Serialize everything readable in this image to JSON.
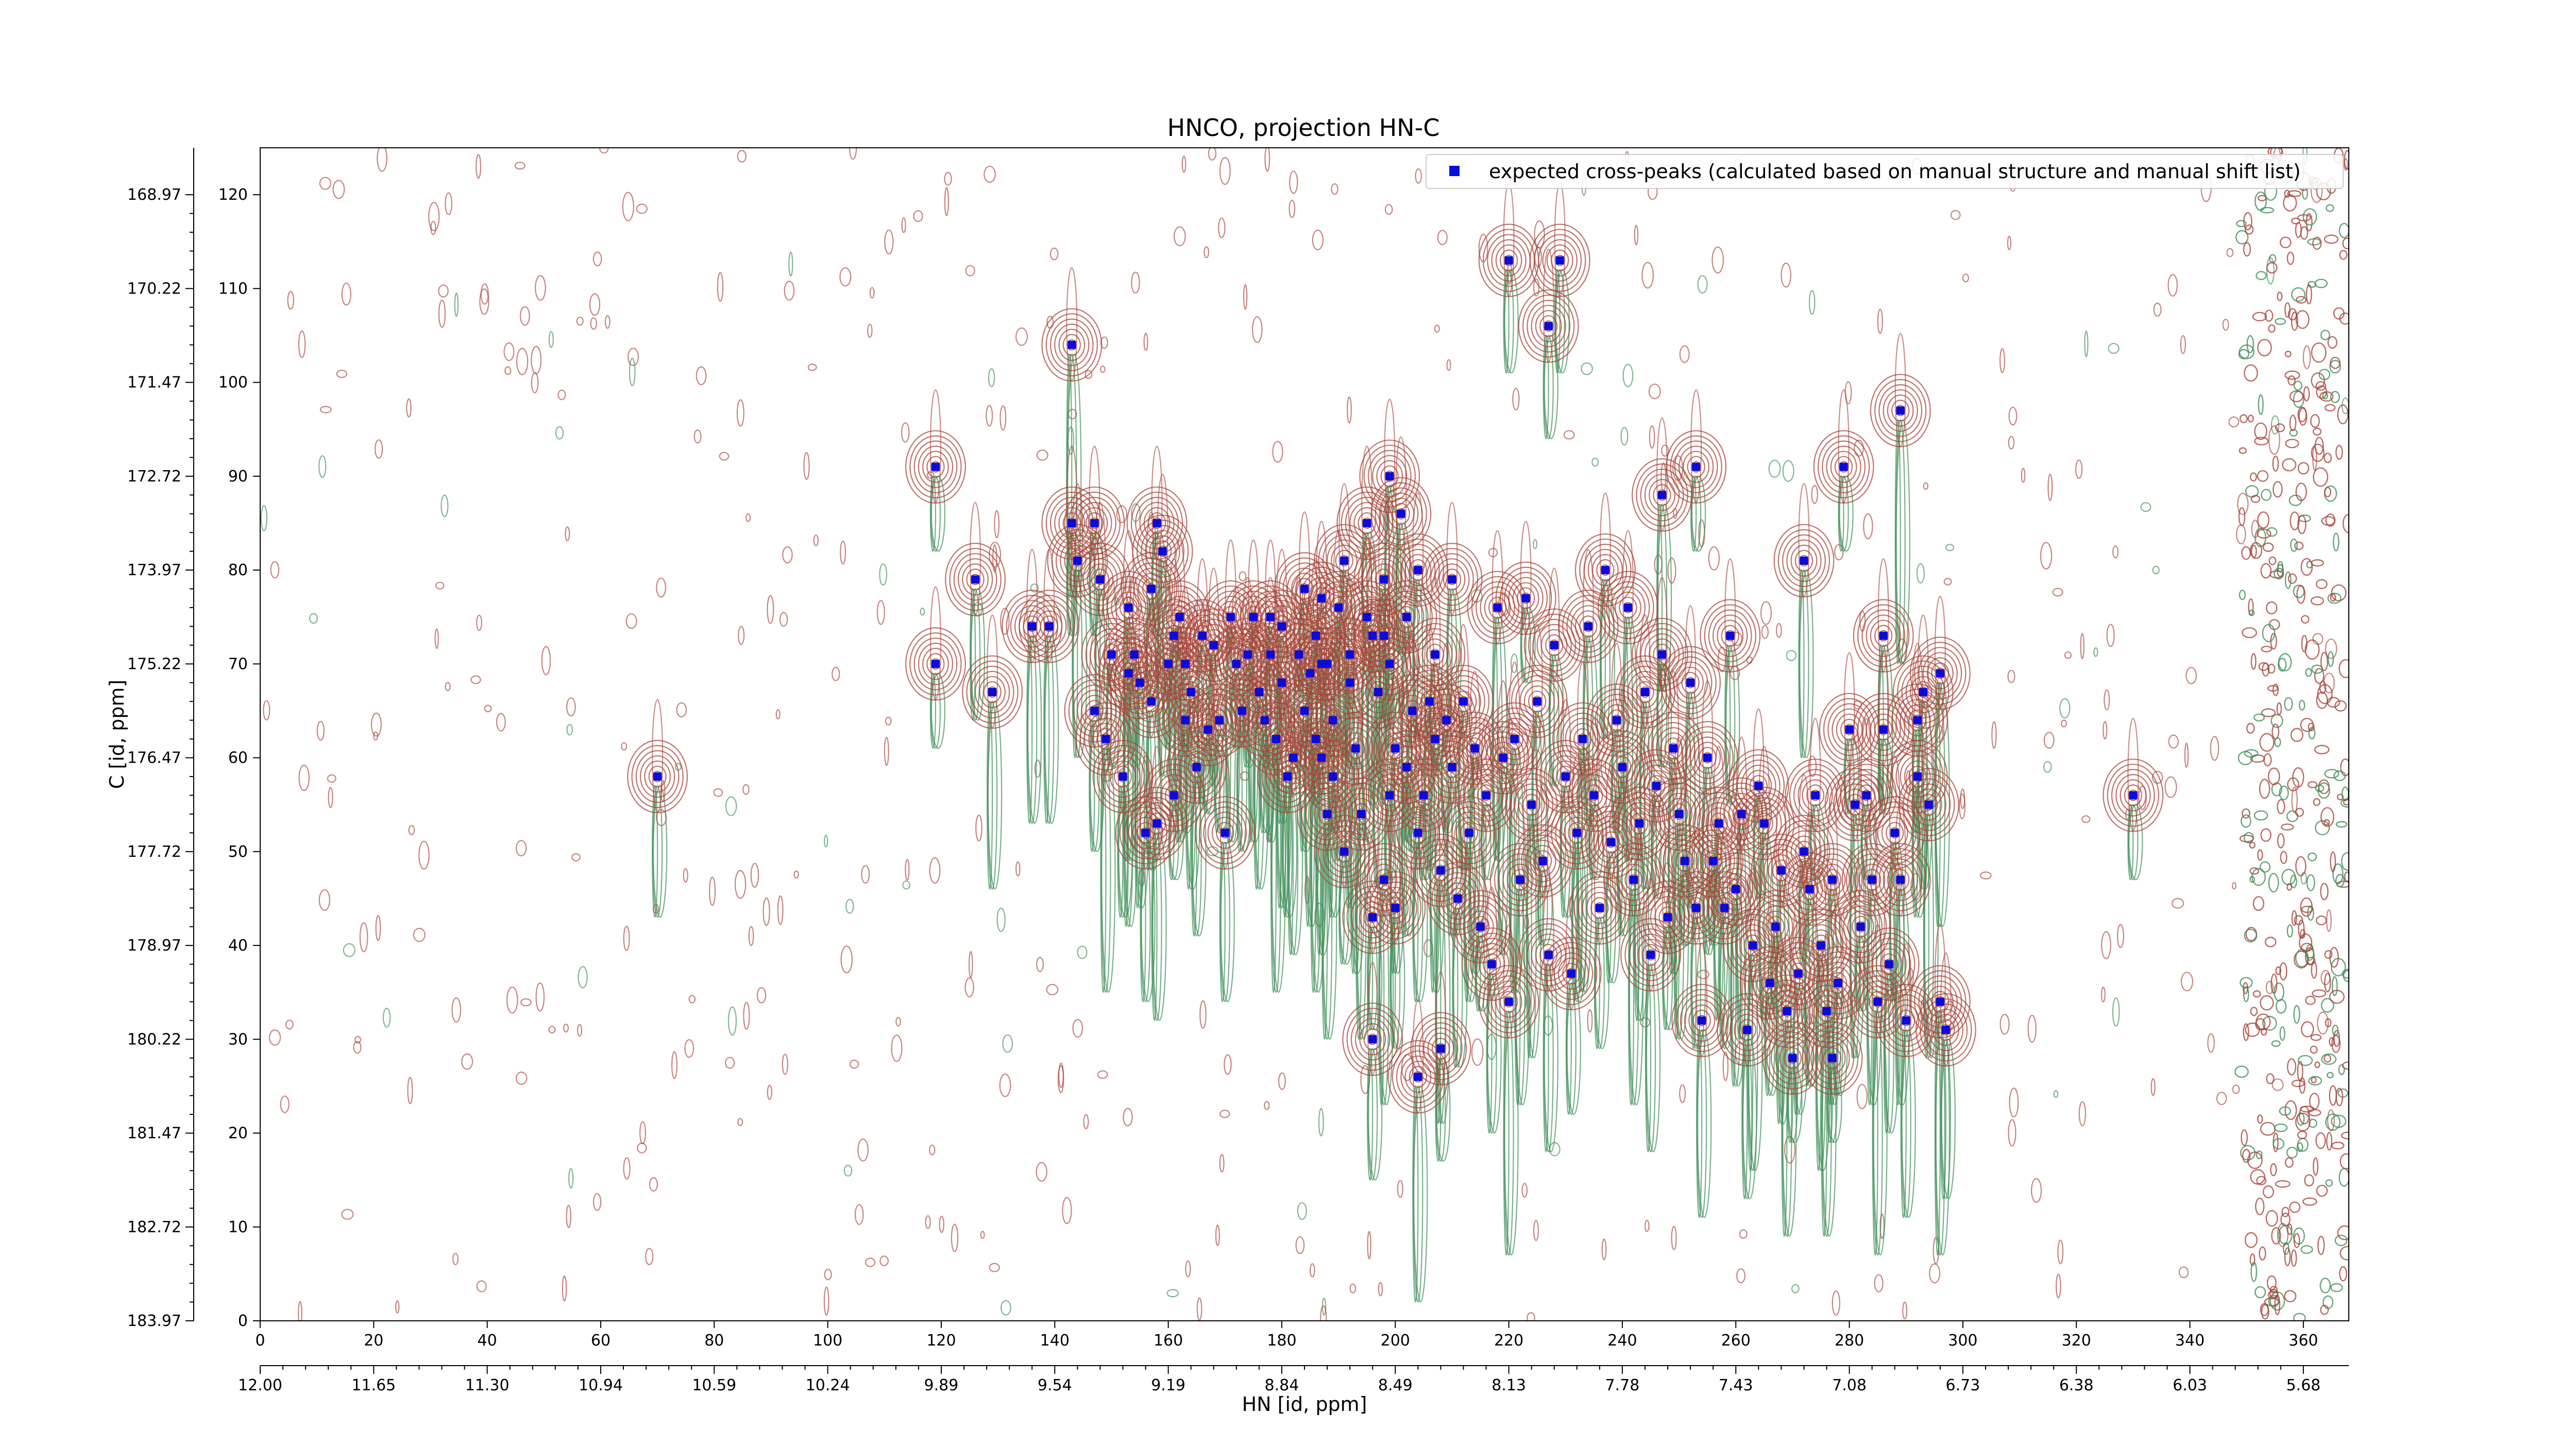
{
  "chart_data": {
    "type": "scatter",
    "title": "HNCO, projection HN-C",
    "xlabel": "HN [id, ppm]",
    "ylabel": "C [id, ppm]",
    "x_index_ticks": [
      "0",
      "20",
      "40",
      "60",
      "80",
      "100",
      "120",
      "140",
      "160",
      "180",
      "200",
      "220",
      "240",
      "260",
      "280",
      "300",
      "320",
      "340",
      "360"
    ],
    "x_ppm_ticks": [
      "12.00",
      "11.65",
      "11.30",
      "10.94",
      "10.59",
      "10.24",
      "9.89",
      "9.54",
      "9.19",
      "8.84",
      "8.49",
      "8.13",
      "7.78",
      "7.43",
      "7.08",
      "6.73",
      "6.38",
      "6.03",
      "5.68"
    ],
    "y_index_ticks": [
      "0",
      "10",
      "20",
      "30",
      "40",
      "50",
      "60",
      "70",
      "80",
      "90",
      "100",
      "110",
      "120"
    ],
    "y_ppm_ticks": [
      "183.97",
      "182.72",
      "181.47",
      "180.22",
      "178.97",
      "177.72",
      "176.47",
      "175.22",
      "173.97",
      "172.72",
      "171.47",
      "170.22",
      "168.97"
    ],
    "xlim": [
      0,
      368
    ],
    "ylim": [
      0,
      125
    ],
    "legend": {
      "label": "expected cross-peaks (calculated based on manual structure and manual shift list)",
      "position": "top-right"
    },
    "colors": {
      "positive_contour": "#a8453a",
      "negative_contour": "#3f8f58",
      "marker": "#0b0bdc"
    },
    "series": [
      {
        "name": "expected cross-peaks (calculated based on manual structure and manual shift list)",
        "points": [
          [
            70,
            58
          ],
          [
            119,
            91
          ],
          [
            119,
            70
          ],
          [
            126,
            79
          ],
          [
            129,
            67
          ],
          [
            136,
            74
          ],
          [
            139,
            74
          ],
          [
            143,
            104
          ],
          [
            143,
            85
          ],
          [
            144,
            81
          ],
          [
            147,
            65
          ],
          [
            148,
            79
          ],
          [
            149,
            62
          ],
          [
            150,
            71
          ],
          [
            152,
            58
          ],
          [
            153,
            76
          ],
          [
            154,
            71
          ],
          [
            155,
            68
          ],
          [
            156,
            52
          ],
          [
            157,
            78
          ],
          [
            157,
            66
          ],
          [
            158,
            53
          ],
          [
            158,
            85
          ],
          [
            159,
            82
          ],
          [
            160,
            70
          ],
          [
            161,
            73
          ],
          [
            161,
            56
          ],
          [
            162,
            75
          ],
          [
            163,
            64
          ],
          [
            164,
            67
          ],
          [
            165,
            59
          ],
          [
            166,
            73
          ],
          [
            167,
            63
          ],
          [
            168,
            72
          ],
          [
            169,
            64
          ],
          [
            171,
            75
          ],
          [
            172,
            70
          ],
          [
            173,
            65
          ],
          [
            174,
            71
          ],
          [
            175,
            75
          ],
          [
            176,
            67
          ],
          [
            177,
            64
          ],
          [
            178,
            71
          ],
          [
            178,
            75
          ],
          [
            179,
            62
          ],
          [
            180,
            74
          ],
          [
            180,
            68
          ],
          [
            181,
            58
          ],
          [
            182,
            60
          ],
          [
            183,
            71
          ],
          [
            184,
            65
          ],
          [
            185,
            69
          ],
          [
            186,
            73
          ],
          [
            186,
            62
          ],
          [
            187,
            77
          ],
          [
            188,
            54
          ],
          [
            188,
            70
          ],
          [
            189,
            64
          ],
          [
            189,
            58
          ],
          [
            190,
            76
          ],
          [
            191,
            50
          ],
          [
            191,
            81
          ],
          [
            192,
            71
          ],
          [
            192,
            68
          ],
          [
            193,
            61
          ],
          [
            194,
            54
          ],
          [
            195,
            75
          ],
          [
            195,
            85
          ],
          [
            196,
            73
          ],
          [
            196,
            43
          ],
          [
            197,
            67
          ],
          [
            198,
            47
          ],
          [
            198,
            79
          ],
          [
            199,
            70
          ],
          [
            199,
            56
          ],
          [
            200,
            61
          ],
          [
            200,
            44
          ],
          [
            201,
            86
          ],
          [
            202,
            75
          ],
          [
            202,
            59
          ],
          [
            203,
            65
          ],
          [
            204,
            80
          ],
          [
            204,
            52
          ],
          [
            205,
            56
          ],
          [
            206,
            66
          ],
          [
            207,
            71
          ],
          [
            207,
            62
          ],
          [
            208,
            48
          ],
          [
            209,
            64
          ],
          [
            210,
            79
          ],
          [
            210,
            59
          ],
          [
            211,
            45
          ],
          [
            212,
            66
          ],
          [
            213,
            52
          ],
          [
            214,
            61
          ],
          [
            215,
            42
          ],
          [
            216,
            56
          ],
          [
            217,
            38
          ],
          [
            218,
            76
          ],
          [
            219,
            60
          ],
          [
            220,
            34
          ],
          [
            220,
            113
          ],
          [
            221,
            62
          ],
          [
            222,
            47
          ],
          [
            223,
            77
          ],
          [
            224,
            55
          ],
          [
            225,
            66
          ],
          [
            226,
            49
          ],
          [
            227,
            106
          ],
          [
            227,
            39
          ],
          [
            228,
            72
          ],
          [
            229,
            113
          ],
          [
            230,
            58
          ],
          [
            231,
            37
          ],
          [
            232,
            52
          ],
          [
            233,
            62
          ],
          [
            234,
            74
          ],
          [
            235,
            56
          ],
          [
            236,
            44
          ],
          [
            237,
            80
          ],
          [
            238,
            51
          ],
          [
            239,
            64
          ],
          [
            240,
            59
          ],
          [
            241,
            76
          ],
          [
            242,
            47
          ],
          [
            243,
            53
          ],
          [
            244,
            67
          ],
          [
            245,
            39
          ],
          [
            246,
            57
          ],
          [
            247,
            71
          ],
          [
            247,
            88
          ],
          [
            248,
            43
          ],
          [
            249,
            61
          ],
          [
            250,
            54
          ],
          [
            251,
            49
          ],
          [
            252,
            68
          ],
          [
            253,
            44
          ],
          [
            254,
            32
          ],
          [
            255,
            60
          ],
          [
            256,
            49
          ],
          [
            257,
            53
          ],
          [
            258,
            44
          ],
          [
            259,
            73
          ],
          [
            260,
            46
          ],
          [
            261,
            54
          ],
          [
            262,
            31
          ],
          [
            263,
            40
          ],
          [
            264,
            57
          ],
          [
            265,
            53
          ],
          [
            266,
            36
          ],
          [
            267,
            42
          ],
          [
            268,
            48
          ],
          [
            269,
            33
          ],
          [
            270,
            28
          ],
          [
            271,
            37
          ],
          [
            272,
            81
          ],
          [
            272,
            50
          ],
          [
            273,
            46
          ],
          [
            274,
            56
          ],
          [
            275,
            40
          ],
          [
            276,
            33
          ],
          [
            277,
            47
          ],
          [
            277,
            28
          ],
          [
            278,
            36
          ],
          [
            279,
            91
          ],
          [
            280,
            63
          ],
          [
            281,
            55
          ],
          [
            282,
            42
          ],
          [
            283,
            56
          ],
          [
            284,
            47
          ],
          [
            285,
            34
          ],
          [
            286,
            63
          ],
          [
            286,
            73
          ],
          [
            287,
            38
          ],
          [
            288,
            52
          ],
          [
            289,
            47
          ],
          [
            289,
            97
          ],
          [
            290,
            32
          ],
          [
            292,
            58
          ],
          [
            292,
            64
          ],
          [
            293,
            67
          ],
          [
            294,
            55
          ],
          [
            296,
            34
          ],
          [
            296,
            69
          ],
          [
            297,
            31
          ],
          [
            330,
            56
          ],
          [
            170,
            52
          ],
          [
            187,
            70
          ],
          [
            253,
            91
          ],
          [
            204,
            26
          ],
          [
            196,
            30
          ],
          [
            208,
            29
          ],
          [
            198,
            73
          ],
          [
            184,
            78
          ],
          [
            163,
            70
          ],
          [
            153,
            69
          ],
          [
            147,
            85
          ],
          [
            199,
            90
          ],
          [
            187,
            60
          ]
        ]
      }
    ]
  }
}
